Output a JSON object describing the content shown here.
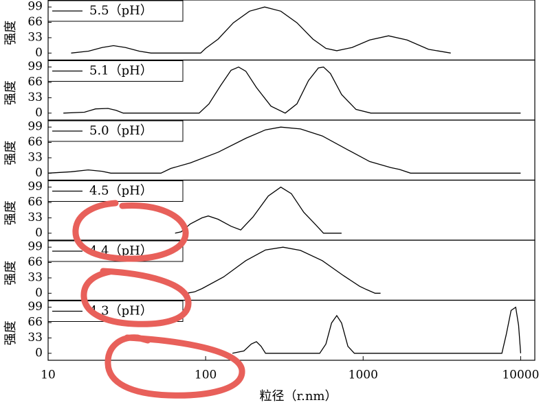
{
  "chart_data": [
    {
      "type": "line",
      "ylabel": "强度",
      "xscale": "log",
      "xlim": [
        10,
        12300
      ],
      "ylim": [
        -15,
        114
      ],
      "yticks": [
        0,
        33,
        66,
        99
      ],
      "legend": "upper left",
      "x": [
        14,
        18,
        22,
        26,
        31,
        38,
        45,
        93,
        100,
        120,
        150,
        190,
        237,
        300,
        380,
        480,
        580,
        680,
        850,
        1100,
        1450,
        1900,
        2600,
        3600
      ],
      "series": [
        {
          "name": "5.5（pH）",
          "color": "#000000",
          "values": [
            0,
            4,
            12,
            16,
            12,
            4,
            0,
            0,
            10,
            30,
            65,
            90,
            99,
            90,
            65,
            30,
            10,
            5,
            12,
            28,
            37,
            28,
            8,
            0
          ]
        }
      ]
    },
    {
      "type": "line",
      "ylabel": "强度",
      "xscale": "log",
      "xlim": [
        10,
        12300
      ],
      "ylim": [
        -15,
        114
      ],
      "yticks": [
        0,
        33,
        66,
        99
      ],
      "legend": "upper left",
      "x": [
        12.5,
        17,
        20,
        24,
        27,
        30,
        91,
        105,
        125,
        145,
        162,
        180,
        210,
        260,
        320,
        380,
        450,
        520,
        560,
        620,
        730,
        900,
        1120,
        10000
      ],
      "series": [
        {
          "name": "5.1（pH）",
          "color": "#000000",
          "values": [
            0,
            2,
            9,
            10,
            6,
            0,
            0,
            20,
            60,
            92,
            99,
            90,
            55,
            15,
            0,
            20,
            70,
            97,
            99,
            85,
            40,
            8,
            0,
            0
          ]
        }
      ]
    },
    {
      "type": "line",
      "ylabel": "强度",
      "xscale": "log",
      "xlim": [
        10,
        12300
      ],
      "ylim": [
        -15,
        114
      ],
      "yticks": [
        0,
        33,
        66,
        99
      ],
      "legend": "upper left",
      "x": [
        10,
        14,
        18,
        22,
        25,
        52,
        60,
        80,
        120,
        180,
        240,
        300,
        400,
        550,
        800,
        1100,
        1500,
        1700,
        2000,
        10000
      ],
      "series": [
        {
          "name": "5.0（pH）",
          "color": "#000000",
          "values": [
            0,
            3,
            7,
            4,
            0,
            0,
            10,
            22,
            45,
            75,
            93,
            99,
            95,
            80,
            50,
            25,
            12,
            8,
            0,
            0
          ]
        }
      ]
    },
    {
      "type": "line",
      "ylabel": "强度",
      "xscale": "log",
      "xlim": [
        10,
        12300
      ],
      "ylim": [
        -15,
        114
      ],
      "yticks": [
        0,
        33,
        66,
        99
      ],
      "legend": "upper left",
      "x": [
        64,
        70,
        80,
        95,
        104,
        120,
        145,
        167,
        200,
        250,
        300,
        350,
        420,
        500,
        560,
        730
      ],
      "series": [
        {
          "name": "4.5（pH）",
          "color": "#000000",
          "values": [
            0,
            3,
            20,
            33,
            37,
            30,
            15,
            7,
            35,
            80,
            99,
            85,
            45,
            18,
            0,
            0
          ]
        }
      ]
    },
    {
      "type": "line",
      "ylabel": "强度",
      "xscale": "log",
      "xlim": [
        10,
        12300
      ],
      "ylim": [
        -15,
        114
      ],
      "yticks": [
        0,
        33,
        66,
        99
      ],
      "legend": "upper left",
      "x": [
        76,
        85,
        95,
        130,
        180,
        240,
        310,
        400,
        550,
        750,
        950,
        1050,
        1190,
        1290
      ],
      "series": [
        {
          "name": "4.4（pH）",
          "color": "#000000",
          "values": [
            0,
            3,
            10,
            35,
            70,
            93,
            99,
            92,
            70,
            38,
            15,
            8,
            0,
            0
          ]
        }
      ]
    },
    {
      "type": "line",
      "ylabel": "强度",
      "xscale": "log",
      "xlim": [
        10,
        12300
      ],
      "ylim": [
        -15,
        114
      ],
      "yticks": [
        0,
        33,
        66,
        99
      ],
      "legend": "upper left",
      "xticks": [
        10,
        100,
        1000,
        10000
      ],
      "xlabel": "粒径（r.nm）",
      "x": [
        148,
        175,
        195,
        210,
        225,
        240,
        530,
        580,
        630,
        680,
        730,
        800,
        880,
        7600,
        8100,
        8700,
        9300,
        9700,
        10000
      ],
      "series": [
        {
          "name": "4.3（pH）",
          "color": "#000000",
          "values": [
            0,
            5,
            20,
            25,
            15,
            0,
            0,
            20,
            65,
            81,
            65,
            15,
            0,
            0,
            40,
            92,
            99,
            60,
            0
          ]
        }
      ]
    }
  ]
}
